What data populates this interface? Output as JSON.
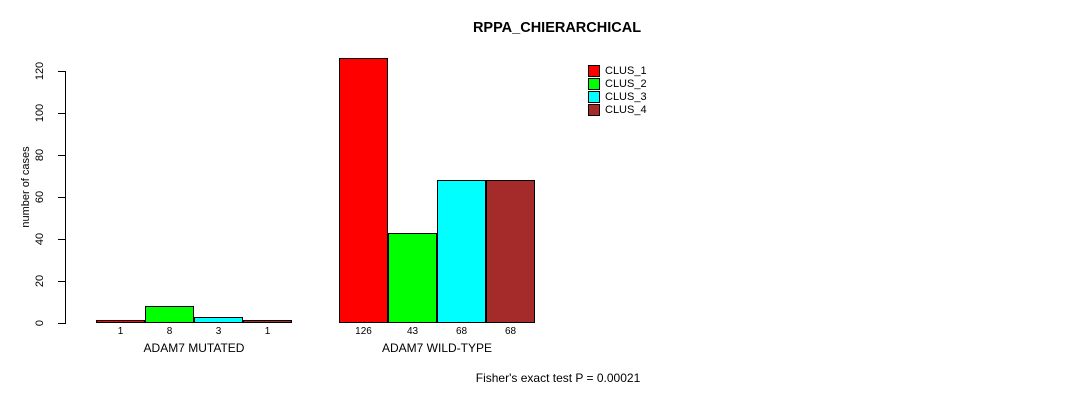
{
  "chart_data": {
    "type": "bar",
    "title": "RPPA_CHIERARCHICAL",
    "ylabel": "number of cases",
    "xlabel": "",
    "ylim": [
      0,
      120
    ],
    "yticks": [
      0,
      20,
      40,
      60,
      80,
      100,
      120
    ],
    "grid": false,
    "legend_position": "top-right",
    "categories": [
      "ADAM7 MUTATED",
      "ADAM7 WILD-TYPE"
    ],
    "series": [
      {
        "name": "CLUS_1",
        "color": "#FF0000",
        "values": [
          1,
          126
        ]
      },
      {
        "name": "CLUS_2",
        "color": "#00FF00",
        "values": [
          8,
          43
        ]
      },
      {
        "name": "CLUS_3",
        "color": "#00FFFF",
        "values": [
          3,
          68
        ]
      },
      {
        "name": "CLUS_4",
        "color": "#A52A2A",
        "values": [
          1,
          68
        ]
      }
    ],
    "bar_value_labels": [
      [
        "1",
        "8",
        "3",
        "1"
      ],
      [
        "126",
        "43",
        "68",
        "68"
      ]
    ],
    "footnote": "Fisher's exact test P = 0.00021"
  },
  "colors": {
    "axis": "#000000",
    "background": "#FFFFFF",
    "text": "#000000"
  }
}
